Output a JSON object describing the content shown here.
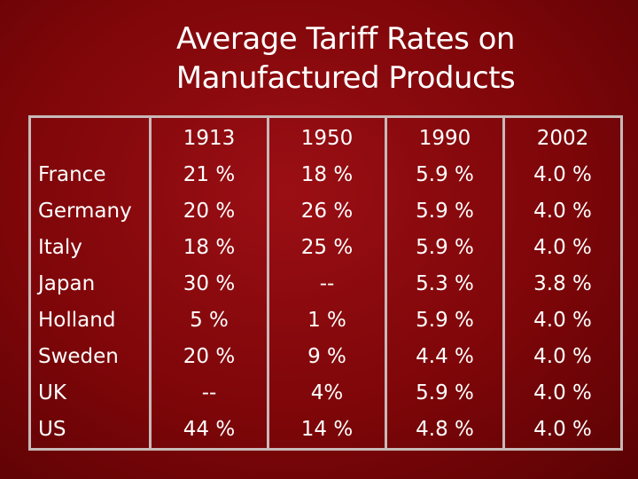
{
  "slide": {
    "title_line1": "Average Tariff Rates on",
    "title_line2": "Manufactured Products"
  },
  "table": {
    "years": [
      "1913",
      "1950",
      "1990",
      "2002"
    ],
    "rows": [
      {
        "country": "France",
        "v1913": "21 %",
        "v1950": "18 %",
        "v1990": "5.9 %",
        "v2002": "4.0 %"
      },
      {
        "country": "Germany",
        "v1913": "20 %",
        "v1950": "26 %",
        "v1990": "5.9 %",
        "v2002": "4.0 %"
      },
      {
        "country": "Italy",
        "v1913": "18 %",
        "v1950": "25 %",
        "v1990": "5.9 %",
        "v2002": "4.0 %"
      },
      {
        "country": "Japan",
        "v1913": "30 %",
        "v1950": "--",
        "v1990": "5.3 %",
        "v2002": "3.8 %"
      },
      {
        "country": "Holland",
        "v1913": "5 %",
        "v1950": "1 %",
        "v1990": "5.9 %",
        "v2002": "4.0 %"
      },
      {
        "country": "Sweden",
        "v1913": "20 %",
        "v1950": "9 %",
        "v1990": "4.4 %",
        "v2002": "4.0 %"
      },
      {
        "country": "UK",
        "v1913": "--",
        "v1950": "4%",
        "v1990": "5.9 %",
        "v2002": "4.0 %"
      },
      {
        "country": "US",
        "v1913": "44 %",
        "v1950": "14 %",
        "v1990": "4.8 %",
        "v2002": "4.0 %"
      }
    ]
  }
}
